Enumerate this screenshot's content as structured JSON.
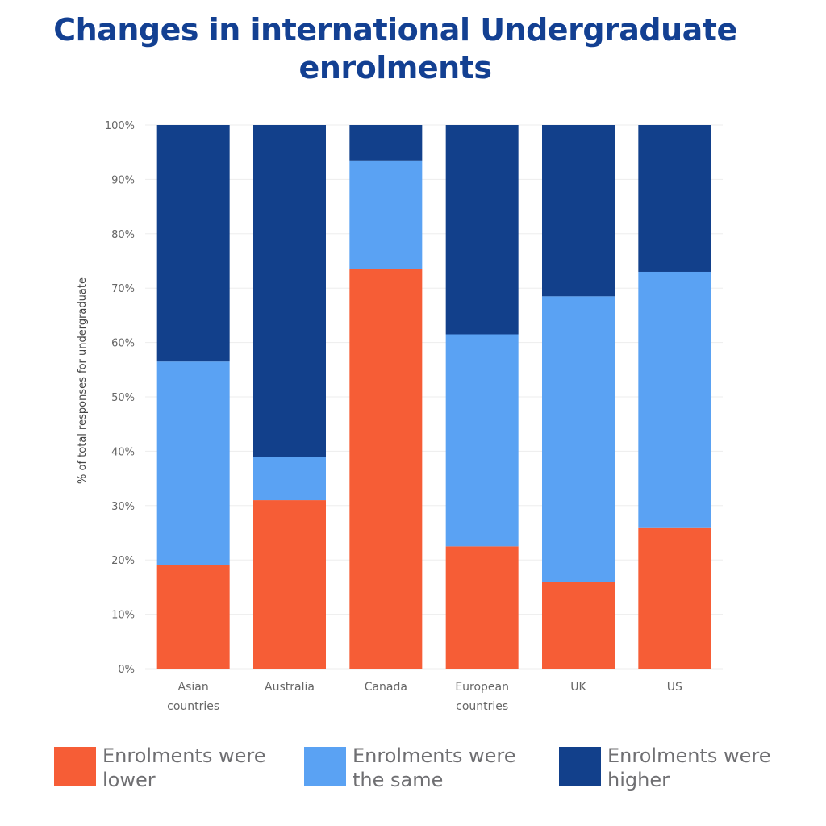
{
  "title": "Changes in international Undergraduate enrolments",
  "colors": {
    "lower": "#f65d36",
    "same": "#5aa2f3",
    "higher": "#12408b",
    "title": "#134092",
    "grid": "#ededed",
    "axis_text": "#666666"
  },
  "chart_data": {
    "type": "bar",
    "stacked": true,
    "title": "Changes in international Undergraduate enrolments",
    "xlabel": "",
    "ylabel": "% of total responses for undergraduate",
    "ylim": [
      0,
      100
    ],
    "y_ticks": [
      "0%",
      "10%",
      "20%",
      "30%",
      "40%",
      "50%",
      "60%",
      "70%",
      "80%",
      "90%",
      "100%"
    ],
    "categories": [
      [
        "Asian",
        "countries"
      ],
      [
        "Australia"
      ],
      [
        "Canada"
      ],
      [
        "European",
        "countries"
      ],
      [
        "UK"
      ],
      [
        "US"
      ]
    ],
    "series": [
      {
        "name": "Enrolments were lower",
        "key": "lower",
        "values": [
          19,
          31,
          73.5,
          22.5,
          16,
          26
        ]
      },
      {
        "name": "Enrolments were the same",
        "key": "same",
        "values": [
          37.5,
          8,
          20,
          39,
          52.5,
          47
        ]
      },
      {
        "name": "Enrolments were higher",
        "key": "higher",
        "values": [
          43.5,
          61,
          6.5,
          38.5,
          31.5,
          27
        ]
      }
    ],
    "grid": true,
    "legend_position": "bottom"
  },
  "legend": {
    "lower": [
      "Enrolments were",
      "lower"
    ],
    "same": [
      "Enrolments were",
      "the same"
    ],
    "higher": [
      "Enrolments were",
      "higher"
    ]
  }
}
